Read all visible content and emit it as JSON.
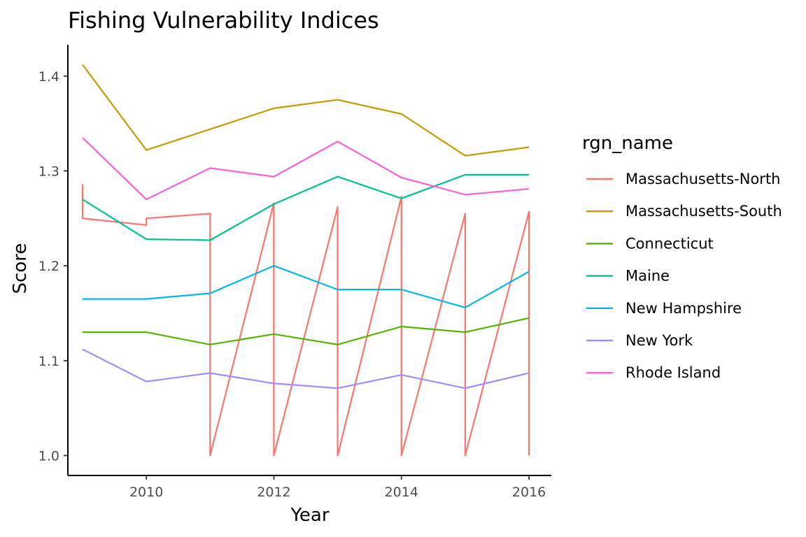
{
  "chart_data": {
    "type": "line",
    "title": "Fishing Vulnerability Indices",
    "xlabel": "Year",
    "ylabel": "Score",
    "xlim": [
      2008.77,
      2016.35
    ],
    "ylim": [
      0.979,
      1.433
    ],
    "xticks": [
      2010,
      2012,
      2014,
      2016
    ],
    "yticks": [
      1.0,
      1.1,
      1.2,
      1.3,
      1.4
    ],
    "ytick_labels": [
      "1.0",
      "1.1",
      "1.2",
      "1.3",
      "1.4"
    ],
    "grid": false,
    "legend": {
      "title": "rgn_name",
      "position": "right"
    },
    "series": [
      {
        "name": "Massachusetts-North",
        "color": "#F8766D",
        "points": [
          [
            2009,
            1.286
          ],
          [
            2009,
            1.25
          ],
          [
            2010,
            1.243
          ],
          [
            2010,
            1.25
          ],
          [
            2011,
            1.255
          ],
          [
            2011,
            1.0
          ],
          [
            2012,
            1.266
          ],
          [
            2012,
            1.0
          ],
          [
            2013,
            1.262
          ],
          [
            2013,
            1.0
          ],
          [
            2014,
            1.273
          ],
          [
            2014,
            1.0
          ],
          [
            2015,
            1.255
          ],
          [
            2015,
            1.0
          ],
          [
            2016,
            1.257
          ],
          [
            2016,
            1.0
          ]
        ]
      },
      {
        "name": "Massachusetts-South",
        "color": "#C49A00",
        "points": [
          [
            2009,
            1.412
          ],
          [
            2010,
            1.322
          ],
          [
            2011,
            1.344
          ],
          [
            2012,
            1.366
          ],
          [
            2013,
            1.375
          ],
          [
            2014,
            1.36
          ],
          [
            2015,
            1.316
          ],
          [
            2016,
            1.325
          ]
        ]
      },
      {
        "name": "Connecticut",
        "color": "#53B400",
        "points": [
          [
            2009,
            1.13
          ],
          [
            2010,
            1.13
          ],
          [
            2011,
            1.117
          ],
          [
            2012,
            1.128
          ],
          [
            2013,
            1.117
          ],
          [
            2014,
            1.136
          ],
          [
            2015,
            1.13
          ],
          [
            2016,
            1.145
          ]
        ]
      },
      {
        "name": "Maine",
        "color": "#00C094",
        "points": [
          [
            2009,
            1.27
          ],
          [
            2010,
            1.228
          ],
          [
            2011,
            1.227
          ],
          [
            2012,
            1.265
          ],
          [
            2013,
            1.294
          ],
          [
            2014,
            1.271
          ],
          [
            2015,
            1.296
          ],
          [
            2016,
            1.296
          ]
        ]
      },
      {
        "name": "New Hampshire",
        "color": "#00B6EB",
        "points": [
          [
            2009,
            1.165
          ],
          [
            2010,
            1.165
          ],
          [
            2011,
            1.171
          ],
          [
            2012,
            1.2
          ],
          [
            2013,
            1.175
          ],
          [
            2014,
            1.175
          ],
          [
            2015,
            1.156
          ],
          [
            2016,
            1.194
          ]
        ]
      },
      {
        "name": "New York",
        "color": "#A58AFF",
        "points": [
          [
            2009,
            1.112
          ],
          [
            2010,
            1.078
          ],
          [
            2011,
            1.087
          ],
          [
            2012,
            1.076
          ],
          [
            2013,
            1.071
          ],
          [
            2014,
            1.085
          ],
          [
            2015,
            1.071
          ],
          [
            2016,
            1.087
          ]
        ]
      },
      {
        "name": "Rhode Island",
        "color": "#FB61D7",
        "points": [
          [
            2009,
            1.335
          ],
          [
            2010,
            1.27
          ],
          [
            2011,
            1.303
          ],
          [
            2012,
            1.294
          ],
          [
            2013,
            1.331
          ],
          [
            2014,
            1.293
          ],
          [
            2015,
            1.275
          ],
          [
            2016,
            1.281
          ]
        ]
      }
    ]
  }
}
